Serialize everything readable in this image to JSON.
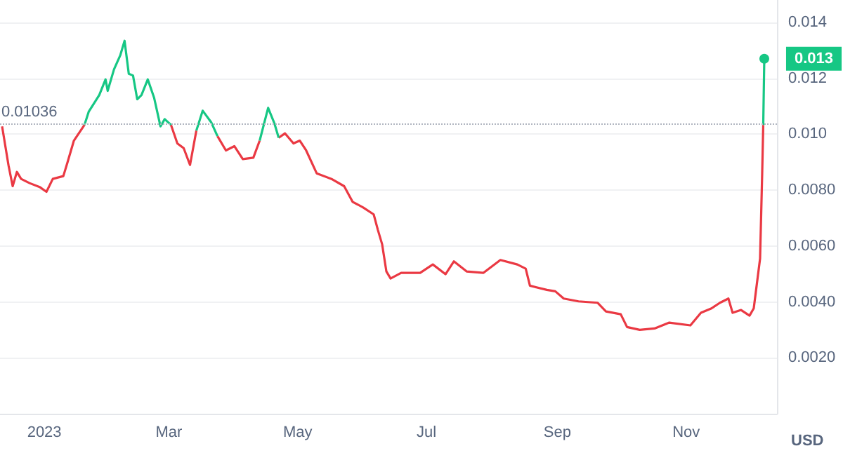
{
  "chart_data": {
    "type": "line",
    "ylabel": "USD",
    "x": [
      "2022-12-12",
      "2022-12-15",
      "2022-12-17",
      "2022-12-19",
      "2022-12-21",
      "2022-12-25",
      "2022-12-30",
      "2023-01-02",
      "2023-01-05",
      "2023-01-10",
      "2023-01-12",
      "2023-01-15",
      "2023-01-20",
      "2023-01-22",
      "2023-01-27",
      "2023-01-30",
      "2023-01-31",
      "2023-02-03",
      "2023-02-06",
      "2023-02-08",
      "2023-02-10",
      "2023-02-12",
      "2023-02-14",
      "2023-02-16",
      "2023-02-19",
      "2023-02-22",
      "2023-02-25",
      "2023-02-27",
      "2023-03-02",
      "2023-03-05",
      "2023-03-08",
      "2023-03-11",
      "2023-03-14",
      "2023-03-17",
      "2023-03-21",
      "2023-03-24",
      "2023-03-28",
      "2023-04-01",
      "2023-04-05",
      "2023-04-10",
      "2023-04-13",
      "2023-04-17",
      "2023-04-20",
      "2023-04-22",
      "2023-04-25",
      "2023-04-29",
      "2023-05-02",
      "2023-05-05",
      "2023-05-10",
      "2023-05-17",
      "2023-05-23",
      "2023-05-27",
      "2023-06-01",
      "2023-06-06",
      "2023-06-08",
      "2023-06-10",
      "2023-06-12",
      "2023-06-14",
      "2023-06-19",
      "2023-06-28",
      "2023-07-04",
      "2023-07-10",
      "2023-07-14",
      "2023-07-20",
      "2023-07-28",
      "2023-08-05",
      "2023-08-13",
      "2023-08-17",
      "2023-08-19",
      "2023-08-27",
      "2023-08-31",
      "2023-09-04",
      "2023-09-11",
      "2023-09-20",
      "2023-09-24",
      "2023-10-01",
      "2023-10-04",
      "2023-10-10",
      "2023-10-17",
      "2023-10-24",
      "2023-11-03",
      "2023-11-08",
      "2023-11-13",
      "2023-11-17",
      "2023-11-21",
      "2023-11-23",
      "2023-11-27",
      "2023-12-01",
      "2023-12-03",
      "2023-12-06",
      "2023-12-07",
      "2023-12-07T12:00",
      "2023-12-08"
    ],
    "series": [
      {
        "color": "#ea3943",
        "values": [
          0.01028,
          0.0089,
          0.00814,
          0.00865,
          0.0084,
          0.00825,
          0.0081,
          0.00794,
          0.0084,
          0.0085,
          0.009,
          0.00977,
          0.01033,
          null,
          null,
          null,
          null,
          null,
          null,
          null,
          null,
          null,
          null,
          null,
          null,
          null,
          null,
          null,
          0.01033,
          0.00967,
          0.0095,
          0.0089,
          0.01013,
          null,
          null,
          0.00993,
          0.00942,
          0.00957,
          0.00911,
          0.00916,
          0.00977,
          null,
          null,
          0.00987,
          0.01003,
          0.00967,
          0.00977,
          0.00942,
          0.0086,
          0.0084,
          0.00814,
          0.00758,
          0.00738,
          0.00713,
          0.00657,
          0.00606,
          0.00509,
          0.00484,
          0.00504,
          0.00504,
          0.00534,
          0.00499,
          0.00545,
          0.00509,
          0.00504,
          0.0055,
          0.00534,
          0.00519,
          0.00458,
          0.00443,
          0.00438,
          0.00412,
          0.00402,
          0.00397,
          0.00366,
          0.00356,
          0.0031,
          0.003,
          0.00305,
          0.00326,
          0.00316,
          0.00361,
          0.00377,
          0.00397,
          0.00412,
          0.00361,
          0.00371,
          0.00351,
          0.00377,
          0.00555,
          0.0086,
          0.01033,
          null
        ]
      },
      {
        "color": "#16c784",
        "values": [
          null,
          null,
          null,
          null,
          null,
          null,
          null,
          null,
          null,
          null,
          null,
          null,
          0.01033,
          0.0108,
          0.0114,
          0.01196,
          0.01155,
          0.01232,
          0.01283,
          0.01334,
          0.01216,
          0.0121,
          0.01125,
          0.0114,
          0.01196,
          0.0113,
          0.01028,
          0.01054,
          0.01033,
          null,
          null,
          null,
          0.01013,
          0.01084,
          0.01043,
          0.00993,
          null,
          null,
          null,
          null,
          0.00977,
          0.01094,
          0.01038,
          0.00987,
          null,
          null,
          null,
          null,
          null,
          null,
          null,
          null,
          null,
          null,
          null,
          null,
          null,
          null,
          null,
          null,
          null,
          null,
          null,
          null,
          null,
          null,
          null,
          null,
          null,
          null,
          null,
          null,
          null,
          null,
          null,
          null,
          null,
          null,
          null,
          null,
          null,
          null,
          null,
          null,
          null,
          null,
          null,
          null,
          null,
          null,
          null,
          0.01033,
          0.0127
        ]
      }
    ],
    "xlim": [
      "2022-12-11",
      "2023-12-14"
    ],
    "xticks": [
      {
        "value": "2023-01-01",
        "label": "2023"
      },
      {
        "value": "2023-03-01",
        "label": "Mar"
      },
      {
        "value": "2023-05-01",
        "label": "May"
      },
      {
        "value": "2023-07-01",
        "label": "Jul"
      },
      {
        "value": "2023-09-01",
        "label": "Sep"
      },
      {
        "value": "2023-11-01",
        "label": "Nov"
      }
    ],
    "ylim": [
      0,
      0.0148
    ],
    "yticks": [
      {
        "value": 0.002,
        "label": "0.0020"
      },
      {
        "value": 0.004,
        "label": "0.0040"
      },
      {
        "value": 0.006,
        "label": "0.0060"
      },
      {
        "value": 0.008,
        "label": "0.0080"
      },
      {
        "value": 0.01,
        "label": "0.010"
      },
      {
        "value": 0.012,
        "label": "0.012"
      },
      {
        "value": 0.014,
        "label": "0.014"
      }
    ],
    "grid": "y",
    "ref_lines": [
      {
        "axis": "y",
        "value": 0.01036,
        "label": "0.01036",
        "color": "#b0b5bf",
        "line_style": "dotted"
      }
    ],
    "annotations": [
      {
        "text": "0.013",
        "x": "2023-12-08",
        "y": 0.0127
      }
    ]
  }
}
